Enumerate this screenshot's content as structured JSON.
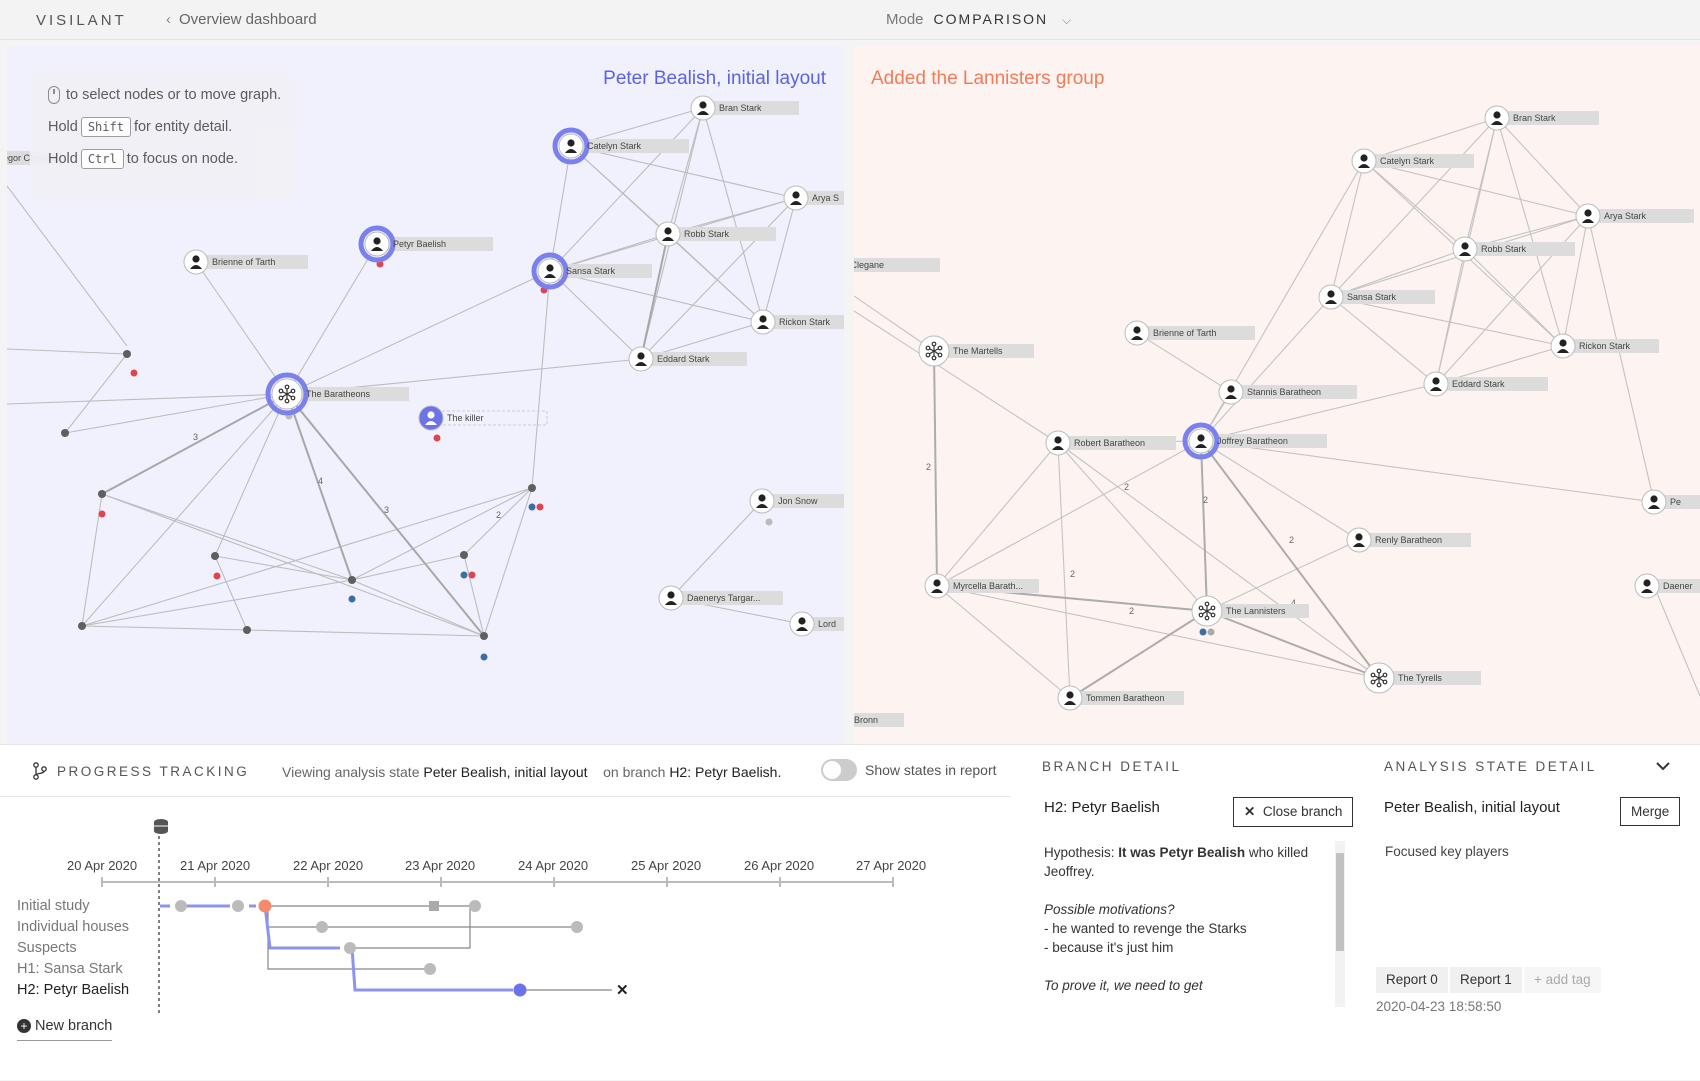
{
  "app": {
    "name": "VISILANT",
    "back_label": "Overview dashboard",
    "mode_label": "Mode",
    "mode_value": "COMPARISON"
  },
  "left": {
    "title": "Peter Bealish, initial layout",
    "help": {
      "line1": "to select nodes or to move graph.",
      "hold": "Hold",
      "shift_key": "Shift",
      "shift_text": "for entity detail.",
      "ctrl_key": "Ctrl",
      "ctrl_text": "to focus on node."
    },
    "nodes": [
      "Bran Stark",
      "Catelyn Stark",
      "Arya S",
      "Petyr Baelish",
      "Robb Stark",
      "Brienne of Tarth",
      "Sansa Stark",
      "Rickon Stark",
      "Eddard Stark",
      "The Baratheons",
      "The killer",
      "Jon Snow",
      "Daenerys Targar...",
      "Lord",
      "Gregor Clegane"
    ],
    "edge_labels": [
      "3",
      "4",
      "3",
      "2"
    ]
  },
  "right": {
    "title": "Added the Lannisters group",
    "nodes": [
      "Bran Stark",
      "Catelyn Stark",
      "Arya Stark",
      "Robb Stark",
      "egor Clegane",
      "Sansa Stark",
      "Brienne of Tarth",
      "Rickon Stark",
      "The Martells",
      "Stannis Baratheon",
      "Eddard Stark",
      "Robert Baratheon",
      "Joffrey Baratheon",
      "Pe",
      "Renly Baratheon",
      "The Lannisters",
      "Daener",
      "Myrcella Barath...",
      "The Tyrells",
      "Tommen Baratheon",
      "Bronn"
    ],
    "edge_labels": [
      "2",
      "2",
      "2",
      "2",
      "2",
      "2",
      "4"
    ]
  },
  "progress": {
    "label": "PROGRESS TRACKING",
    "viewing_prefix": "Viewing analysis state",
    "viewing_state": "Peter Bealish, initial layout",
    "branch_prefix": "on branch",
    "branch_name": "H2: Petyr Baelish.",
    "toggle_label": "Show states in report",
    "dates": [
      "20 Apr 2020",
      "21 Apr 2020",
      "22 Apr 2020",
      "23 Apr 2020",
      "24 Apr 2020",
      "25 Apr 2020",
      "26 Apr 2020",
      "27 Apr 2020"
    ],
    "branches": [
      "Initial study",
      "Individual houses",
      "Suspects",
      "H1: Sansa Stark",
      "H2: Petyr Baelish"
    ],
    "new_branch": "New branch"
  },
  "branch_detail": {
    "label": "BRANCH DETAIL",
    "title": "H2: Petyr Baelish",
    "close_label": "Close branch",
    "hyp_prefix": "Hypothesis: ",
    "hyp_bold": "It was Petyr Bealish",
    "hyp_rest": " who killed Jeoffrey.",
    "motiv": "Possible motivations?",
    "m1": "- he wanted to revenge the Starks",
    "m2": "- because it's just him",
    "prove": "To prove it, we need to get"
  },
  "state_detail": {
    "label": "ANALYSIS STATE DETAIL",
    "title": "Peter Bealish, initial layout",
    "merge_label": "Merge",
    "note": "Focused key players",
    "tags": [
      "Report 0",
      "Report 1"
    ],
    "add_tag": "+ add tag",
    "timestamp": "2020-04-23 18:58:50"
  },
  "colors": {
    "accent_blue": "#6b72ea",
    "accent_orange": "#f07c59",
    "red_dot": "#e0454f",
    "blue_dot": "#3a6ea5"
  }
}
